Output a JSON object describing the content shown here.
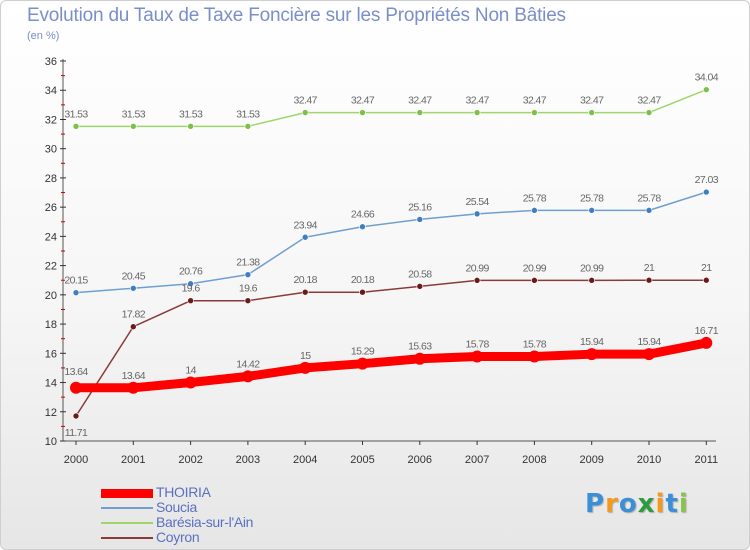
{
  "chart_data": {
    "type": "line",
    "title": "Evolution du Taux de Taxe Foncière sur les Propriétés Non Bâties",
    "unit_label": "(en %)",
    "x": [
      "2000",
      "2001",
      "2002",
      "2003",
      "2004",
      "2005",
      "2006",
      "2007",
      "2008",
      "2009",
      "2010",
      "2011"
    ],
    "ylim": [
      10,
      36
    ],
    "yticks": [
      10,
      12,
      14,
      16,
      18,
      20,
      22,
      24,
      26,
      28,
      30,
      32,
      34,
      36
    ],
    "grid": false,
    "series": [
      {
        "name": "THOIRIA",
        "color": "#ff0000",
        "point_color": "#ff0000",
        "values": [
          13.64,
          13.64,
          14,
          14.42,
          15,
          15.29,
          15.63,
          15.78,
          15.78,
          15.94,
          15.94,
          16.71
        ],
        "labels": [
          "13.64",
          "13.64",
          "14",
          "14.42",
          "15",
          "15.29",
          "15.63",
          "15.78",
          "15.78",
          "15.94",
          "15.94",
          "16.71"
        ]
      },
      {
        "name": "Soucia",
        "color": "#6f9fd1",
        "point_color": "#3f7fc0",
        "values": [
          20.15,
          20.45,
          20.76,
          21.38,
          23.94,
          24.66,
          25.16,
          25.54,
          25.78,
          25.78,
          25.78,
          27.03
        ],
        "labels": [
          "20.15",
          "20.45",
          "20.76",
          "21.38",
          "23.94",
          "24.66",
          "25.16",
          "25.54",
          "25.78",
          "25.78",
          "25.78",
          "27.03"
        ]
      },
      {
        "name": "Barésia-sur-l'Ain",
        "color": "#9fd66a",
        "point_color": "#7cc04a",
        "values": [
          31.53,
          31.53,
          31.53,
          31.53,
          32.47,
          32.47,
          32.47,
          32.47,
          32.47,
          32.47,
          32.47,
          34.04
        ],
        "labels": [
          "31.53",
          "31.53",
          "31.53",
          "31.53",
          "32.47",
          "32.47",
          "32.47",
          "32.47",
          "32.47",
          "32.47",
          "32.47",
          "34.04"
        ]
      },
      {
        "name": "Coyron",
        "color": "#8b3a3a",
        "point_color": "#6b1a1a",
        "values": [
          11.71,
          17.82,
          19.6,
          19.6,
          20.18,
          20.18,
          20.58,
          20.99,
          20.99,
          20.99,
          21,
          21
        ],
        "labels": [
          "11.71",
          "17.82",
          "19.6",
          "19.6",
          "20.18",
          "20.18",
          "20.58",
          "20.99",
          "20.99",
          "20.99",
          "21",
          "21"
        ]
      }
    ]
  },
  "branding": {
    "logo_letters": [
      "P",
      "r",
      "o",
      "x",
      "i",
      "t",
      "i"
    ],
    "logo_colors": [
      "#3a8fd6",
      "#f29a1f",
      "#3a8fd6",
      "#2e9b3e",
      "#f29a1f",
      "#3a8fd6",
      "#8bc34a"
    ]
  }
}
